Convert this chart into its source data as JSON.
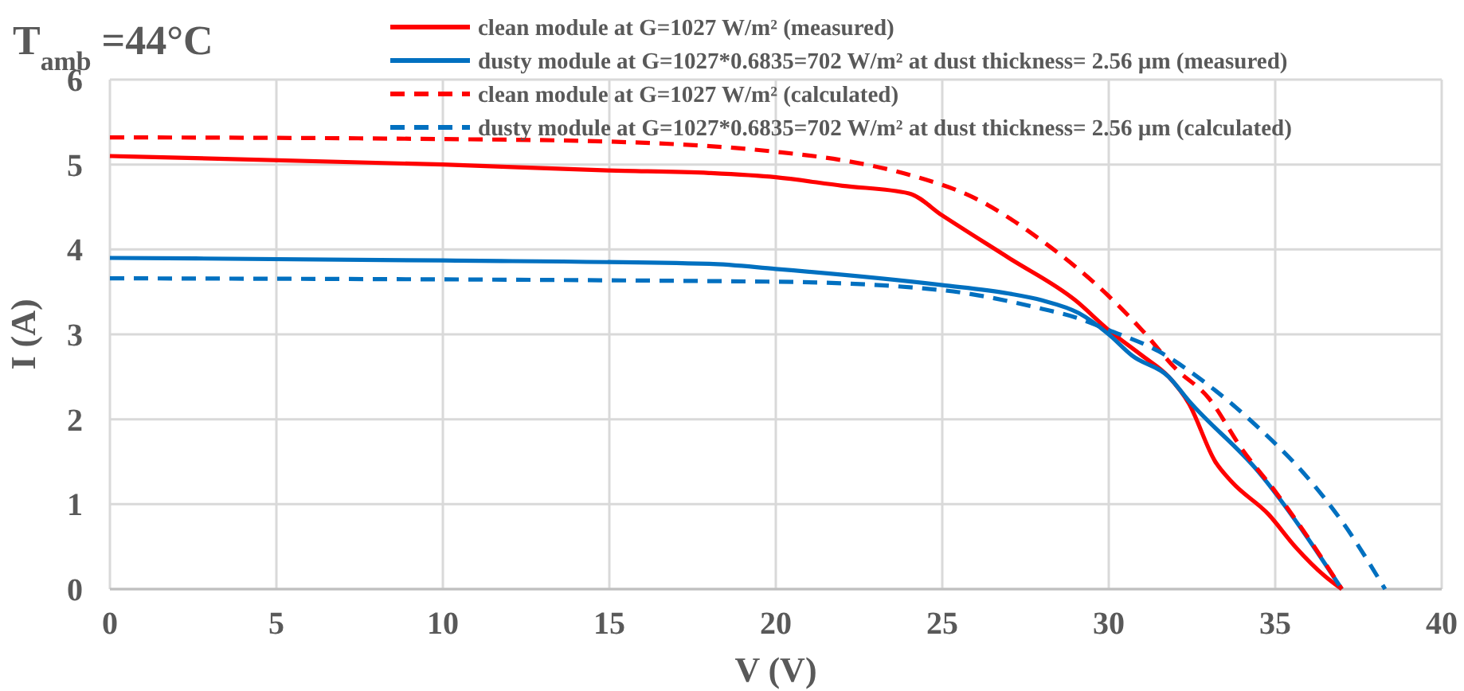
{
  "chart_data": {
    "type": "line",
    "title": "T$_{amb}$ =44°C",
    "xlabel": "V (V)",
    "ylabel": "I (A)",
    "xlim": [
      0,
      40
    ],
    "xticks": [
      0,
      5,
      10,
      15,
      20,
      25,
      30,
      35,
      40
    ],
    "ylim": [
      0,
      6
    ],
    "yticks": [
      0,
      1,
      2,
      3,
      4,
      5,
      6
    ],
    "grid": true,
    "legend": "top right",
    "series": [
      {
        "name": "clean module at  G=1027 W/m² (measured)",
        "color": "#ff0000",
        "line_style": "solid",
        "x": [
          0,
          10,
          15,
          18,
          20,
          22,
          24,
          25,
          27,
          29,
          30,
          31,
          31.8,
          32.4,
          33.2,
          33.7,
          34.8,
          35.6,
          36.5,
          37
        ],
        "values": [
          5.1,
          5.0,
          4.93,
          4.9,
          4.85,
          4.75,
          4.66,
          4.4,
          3.9,
          3.4,
          3.05,
          2.75,
          2.5,
          2.19,
          1.5,
          1.26,
          0.88,
          0.5,
          0.15,
          0
        ]
      },
      {
        "name": "dusty module at  G=1027*0.6835=702 W/m² at dust thickness= 2.56 µm (measured)",
        "color": "#0070c0",
        "line_style": "solid",
        "x": [
          0,
          10,
          18,
          20,
          25,
          27,
          28,
          29.1,
          30,
          30.7,
          31.8,
          32.4,
          34.5,
          37
        ],
        "values": [
          3.9,
          3.87,
          3.83,
          3.77,
          3.58,
          3.48,
          3.4,
          3.25,
          3.0,
          2.75,
          2.5,
          2.22,
          1.38,
          0
        ]
      },
      {
        "name": "clean module at  G=1027 W/m² (calculated)",
        "color": "#ff0000",
        "line_style": "dashed",
        "x": [
          0,
          10,
          15,
          20,
          22,
          24,
          26,
          28,
          30,
          31,
          32,
          33,
          34,
          35,
          36,
          37
        ],
        "values": [
          5.32,
          5.3,
          5.27,
          5.15,
          5.05,
          4.88,
          4.6,
          4.1,
          3.45,
          3.05,
          2.6,
          2.25,
          1.65,
          1.15,
          0.6,
          0
        ]
      },
      {
        "name": "dusty module at  G=1027*0.6835=702 W/m² at dust thickness= 2.56 µm (calculated)",
        "color": "#0070c0",
        "line_style": "dashed",
        "x": [
          0,
          20,
          25,
          28,
          29,
          30,
          31.5,
          33,
          34.5,
          36,
          37,
          38.3
        ],
        "values": [
          3.66,
          3.62,
          3.52,
          3.3,
          3.2,
          3.05,
          2.8,
          2.4,
          1.9,
          1.3,
          0.8,
          0
        ]
      }
    ]
  }
}
